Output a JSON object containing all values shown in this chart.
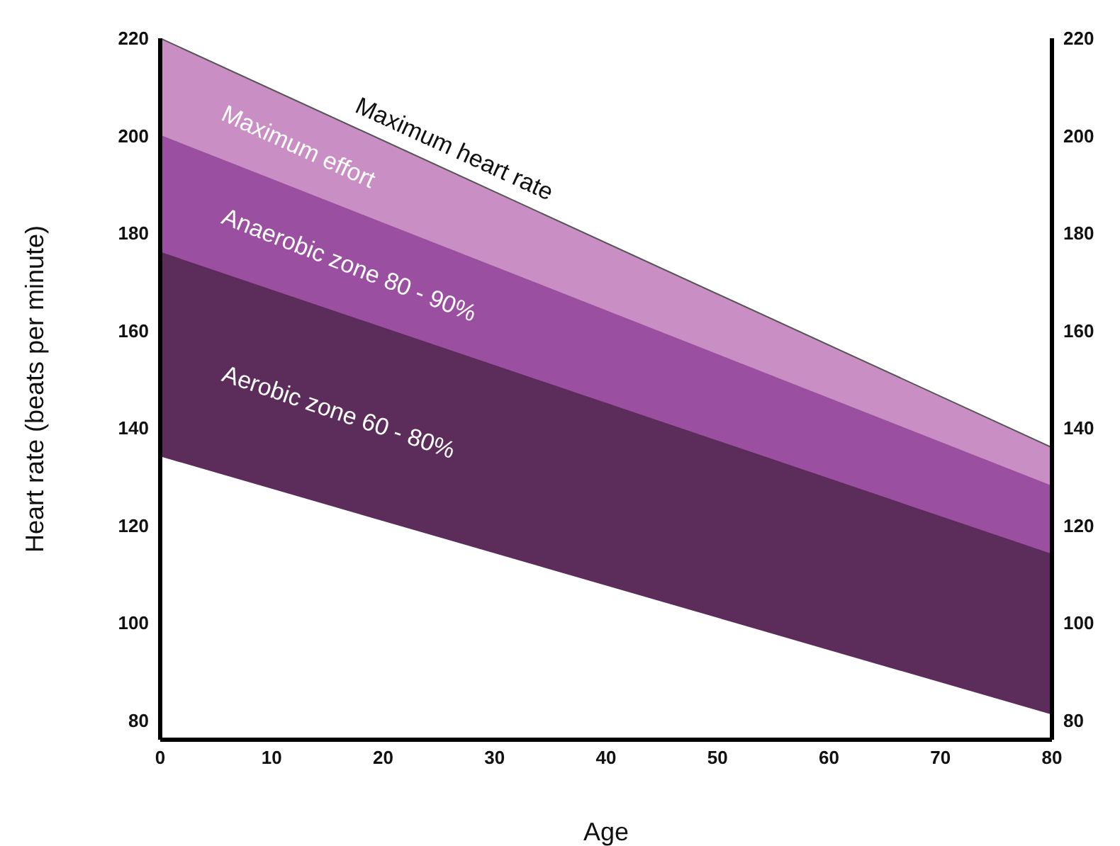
{
  "chart_data": {
    "type": "area",
    "xlabel": "Age",
    "ylabel": "Heart rate (beats per minute)",
    "x": [
      0,
      80
    ],
    "xlim": [
      0,
      80
    ],
    "xticks": [
      0,
      10,
      20,
      30,
      40,
      50,
      60,
      70,
      80
    ],
    "ylim": [
      76,
      220
    ],
    "yticks": [
      80,
      100,
      120,
      140,
      160,
      180,
      200,
      220
    ],
    "y2lim": [
      76,
      220
    ],
    "y2ticks": [
      80,
      100,
      120,
      140,
      160,
      180,
      200,
      220
    ],
    "grid": false,
    "series": [
      {
        "name": "Maximum effort",
        "color": "#c98fc4",
        "values": [
          220,
          136
        ]
      },
      {
        "name": "Anaerobic zone 80 - 90%",
        "color": "#9b4fa0",
        "values": [
          200,
          128
        ]
      },
      {
        "name": "Aerobic zone 60 - 80%",
        "color": "#5c2d5a",
        "values": [
          176,
          114
        ]
      },
      {
        "color": "#ffffff",
        "values": [
          134,
          81
        ]
      }
    ],
    "annotations": [
      "Maximum heart rate"
    ]
  }
}
